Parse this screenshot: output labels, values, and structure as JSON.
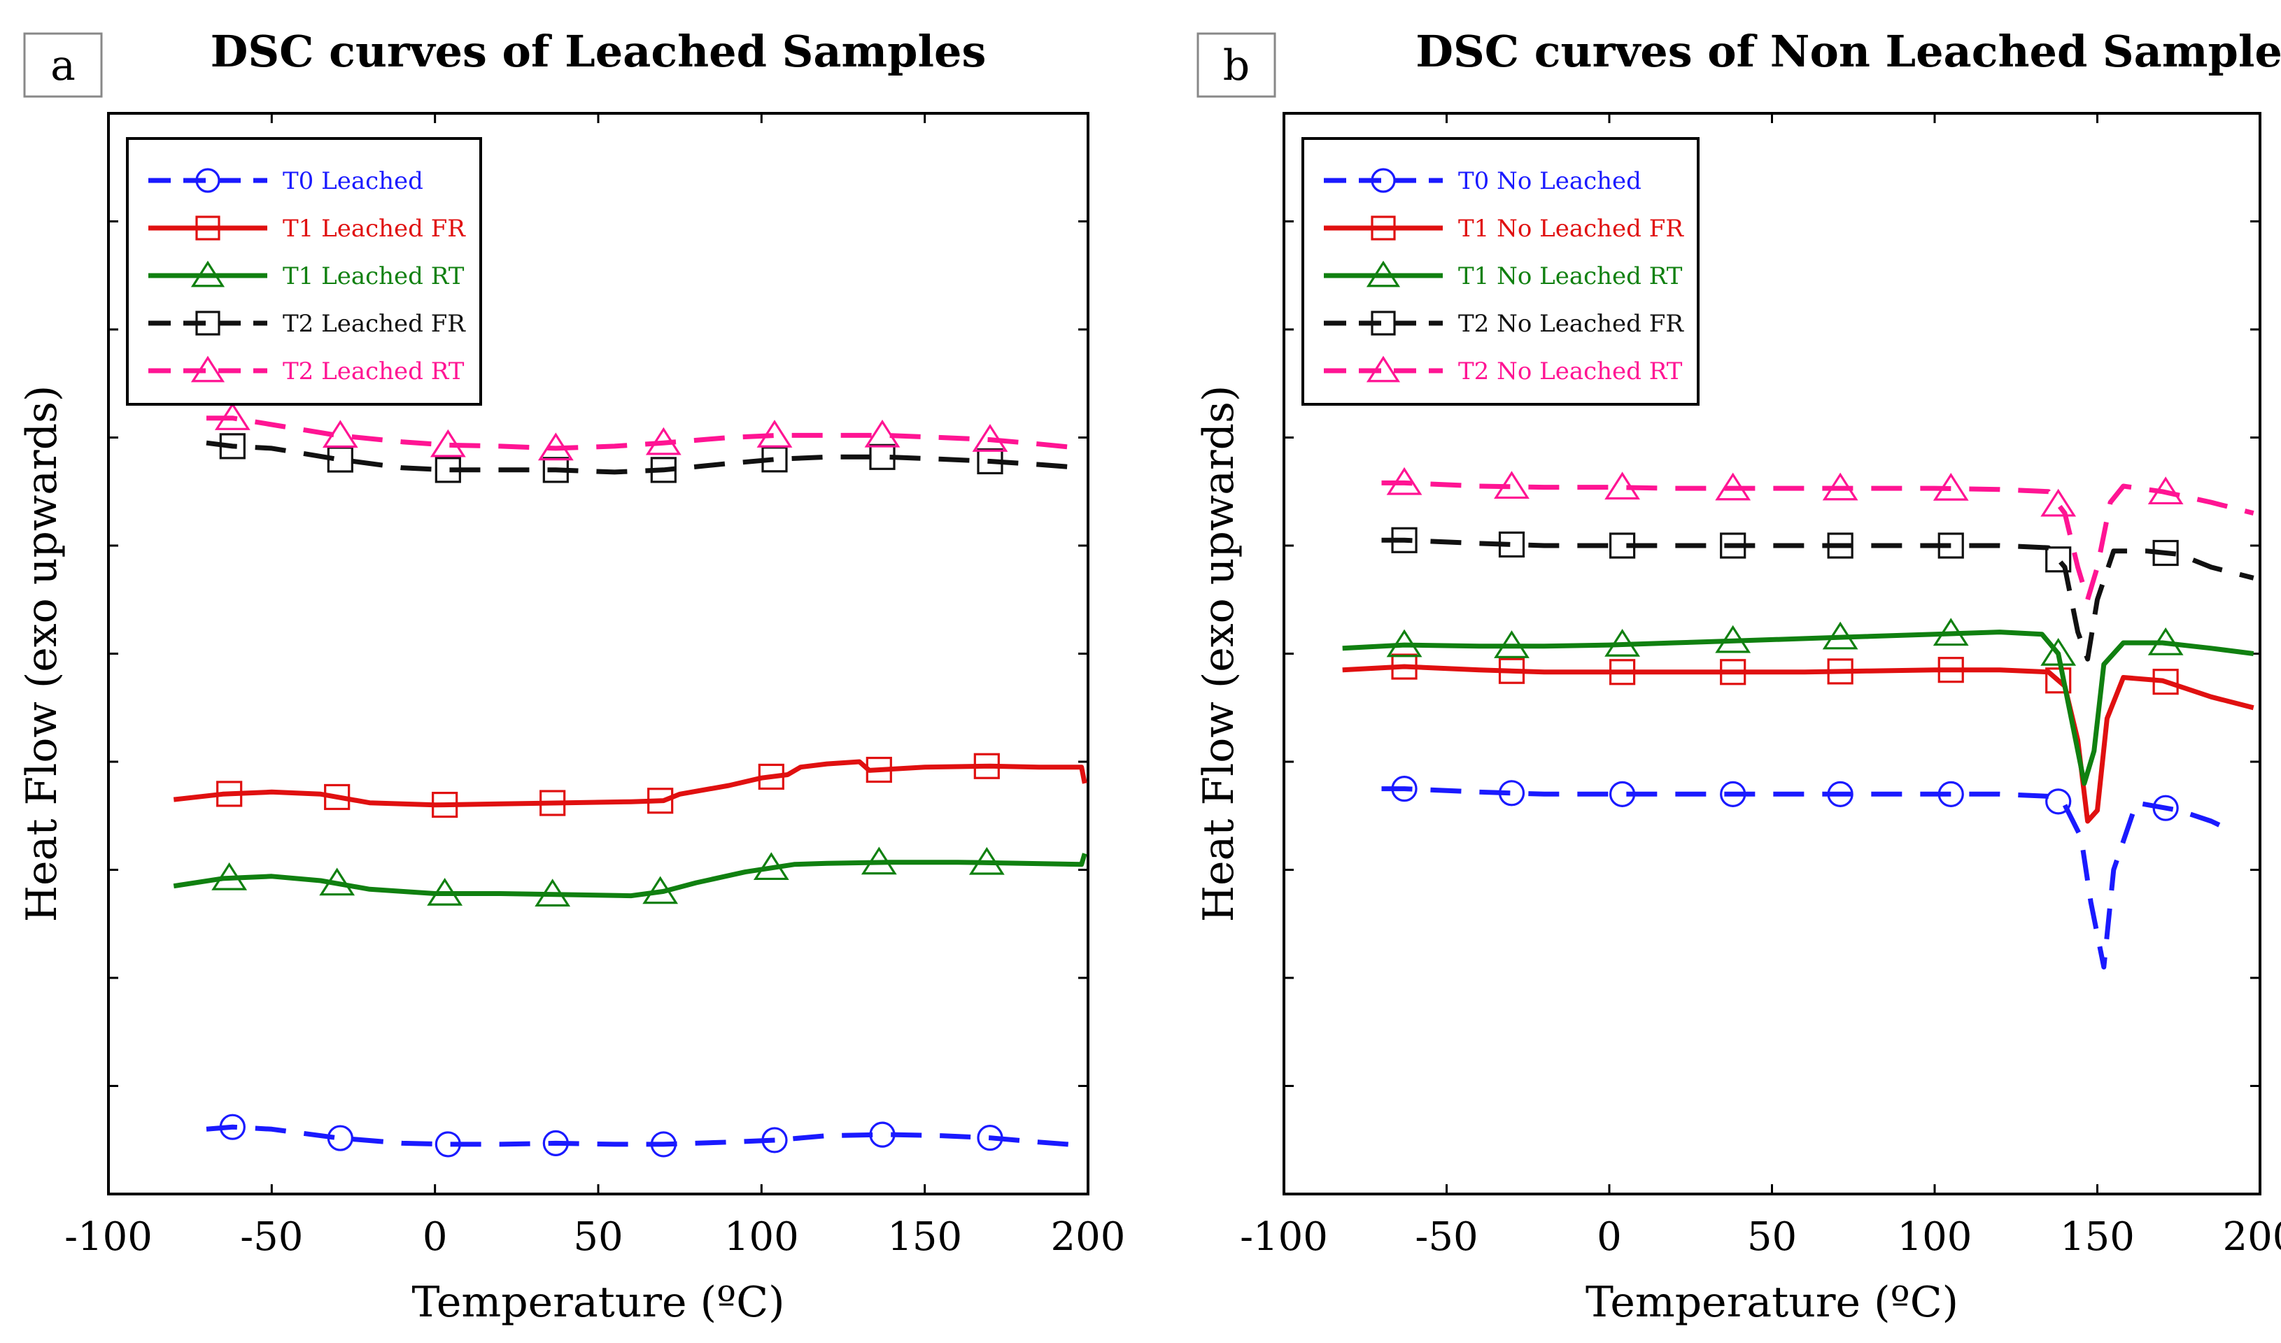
{
  "chart_data": [
    {
      "panel_label": "a",
      "type": "line",
      "title": "DSC curves of Leached Samples",
      "xlabel": "Temperature (ºC)",
      "ylabel": "Heat Flow (exo upwards)",
      "xlim": [
        -100,
        200
      ],
      "ylim": [
        0,
        10
      ],
      "xticks": [
        "-100",
        "-50",
        "0",
        "50",
        "100",
        "150",
        "200"
      ],
      "xtick_values": [
        -100,
        -50,
        0,
        50,
        100,
        150,
        200
      ],
      "ytick_values": [
        1,
        2,
        3,
        4,
        5,
        6,
        7,
        8,
        9
      ],
      "legend_position": "top-left",
      "series": [
        {
          "name": "T0 Leached",
          "color": "#1a1aff",
          "dash": "dashed",
          "marker": "circle",
          "x": [
            -70,
            -62,
            -50,
            -30,
            -10,
            4,
            20,
            37,
            55,
            70,
            90,
            105,
            120,
            138,
            155,
            170,
            185,
            198
          ],
          "y": [
            0.6,
            0.62,
            0.6,
            0.52,
            0.47,
            0.46,
            0.46,
            0.47,
            0.46,
            0.46,
            0.48,
            0.5,
            0.54,
            0.55,
            0.54,
            0.52,
            0.48,
            0.45
          ],
          "marker_x": [
            -62,
            -29,
            4,
            37,
            70,
            104,
            137,
            170
          ]
        },
        {
          "name": "T1 Leached FR",
          "color": "#e01010",
          "dash": "solid",
          "marker": "square",
          "x": [
            -80,
            -65,
            -50,
            -35,
            -20,
            0,
            20,
            40,
            60,
            70,
            75,
            90,
            100,
            108,
            112,
            120,
            130,
            133,
            150,
            170,
            185,
            198,
            199
          ],
          "y": [
            3.65,
            3.7,
            3.72,
            3.7,
            3.62,
            3.6,
            3.61,
            3.62,
            3.63,
            3.64,
            3.7,
            3.78,
            3.85,
            3.88,
            3.95,
            3.98,
            4.0,
            3.92,
            3.95,
            3.96,
            3.95,
            3.95,
            3.8
          ],
          "marker_x": [
            -63,
            -30,
            3,
            36,
            69,
            103,
            136,
            169
          ]
        },
        {
          "name": "T1 Leached RT",
          "color": "#108010",
          "dash": "solid",
          "marker": "triangle",
          "x": [
            -80,
            -65,
            -50,
            -35,
            -20,
            0,
            20,
            40,
            60,
            70,
            80,
            95,
            110,
            120,
            140,
            160,
            180,
            198,
            199
          ],
          "y": [
            2.85,
            2.92,
            2.94,
            2.9,
            2.82,
            2.78,
            2.78,
            2.77,
            2.76,
            2.8,
            2.88,
            2.98,
            3.05,
            3.06,
            3.07,
            3.07,
            3.06,
            3.05,
            3.15
          ],
          "marker_x": [
            -63,
            -30,
            3,
            36,
            69,
            103,
            136,
            169
          ]
        },
        {
          "name": "T2 Leached FR",
          "color": "#111111",
          "dash": "dashed",
          "marker": "square",
          "x": [
            -70,
            -62,
            -50,
            -30,
            -10,
            4,
            20,
            37,
            55,
            70,
            90,
            105,
            120,
            138,
            155,
            170,
            185,
            198
          ],
          "y": [
            6.95,
            6.92,
            6.9,
            6.8,
            6.72,
            6.7,
            6.7,
            6.7,
            6.68,
            6.7,
            6.76,
            6.8,
            6.82,
            6.82,
            6.8,
            6.78,
            6.75,
            6.72
          ],
          "marker_x": [
            -62,
            -29,
            4,
            37,
            70,
            104,
            137,
            170
          ]
        },
        {
          "name": "T2 Leached RT",
          "color": "#ff1493",
          "dash": "dashed",
          "marker": "triangle",
          "x": [
            -70,
            -62,
            -50,
            -30,
            -10,
            4,
            20,
            37,
            55,
            70,
            90,
            105,
            120,
            138,
            155,
            170,
            185,
            198
          ],
          "y": [
            7.18,
            7.18,
            7.12,
            7.02,
            6.96,
            6.93,
            6.92,
            6.9,
            6.92,
            6.95,
            7.0,
            7.02,
            7.02,
            7.02,
            7.0,
            6.98,
            6.94,
            6.9
          ],
          "marker_x": [
            -62,
            -29,
            4,
            37,
            70,
            104,
            137,
            170
          ]
        }
      ]
    },
    {
      "panel_label": "b",
      "type": "line",
      "title": "DSC curves of Non Leached Samples",
      "xlabel": "Temperature (ºC)",
      "ylabel": "Heat Flow (exo upwards)",
      "xlim": [
        -100,
        200
      ],
      "ylim": [
        0,
        10
      ],
      "xticks": [
        "-100",
        "-50",
        "0",
        "50",
        "100",
        "150",
        "200"
      ],
      "xtick_values": [
        -100,
        -50,
        0,
        50,
        100,
        150,
        200
      ],
      "ytick_values": [
        1.0,
        2.0,
        3.0,
        4.0,
        5.0,
        6.0,
        7.0,
        8.0,
        9.0
      ],
      "legend_position": "top-left",
      "series": [
        {
          "name": "T0 No Leached",
          "color": "#1a1aff",
          "dash": "dashed",
          "marker": "circle",
          "x": [
            -70,
            -63,
            -40,
            -20,
            0,
            20,
            40,
            60,
            80,
            100,
            120,
            135,
            140,
            145,
            148,
            152,
            155,
            162,
            175,
            185,
            192
          ],
          "y": [
            3.75,
            3.75,
            3.72,
            3.7,
            3.7,
            3.7,
            3.7,
            3.7,
            3.7,
            3.7,
            3.7,
            3.68,
            3.6,
            3.3,
            2.7,
            2.1,
            3.0,
            3.62,
            3.55,
            3.45,
            3.35
          ],
          "marker_x": [
            -63,
            -30,
            4,
            38,
            71,
            105,
            138,
            171
          ]
        },
        {
          "name": "T1 No Leached FR",
          "color": "#e01010",
          "dash": "solid",
          "marker": "square",
          "x": [
            -82,
            -63,
            -40,
            -20,
            0,
            20,
            40,
            60,
            80,
            100,
            120,
            135,
            140,
            144,
            147,
            150,
            153,
            158,
            170,
            185,
            198
          ],
          "y": [
            4.85,
            4.88,
            4.85,
            4.83,
            4.83,
            4.83,
            4.83,
            4.83,
            4.84,
            4.85,
            4.85,
            4.83,
            4.7,
            4.2,
            3.45,
            3.55,
            4.4,
            4.78,
            4.75,
            4.6,
            4.5
          ],
          "marker_x": [
            -63,
            -30,
            4,
            38,
            71,
            105,
            138,
            171
          ]
        },
        {
          "name": "T1 No Leached RT",
          "color": "#108010",
          "dash": "solid",
          "marker": "triangle",
          "x": [
            -82,
            -63,
            -40,
            -20,
            0,
            20,
            40,
            60,
            80,
            100,
            120,
            133,
            138,
            142,
            146,
            149,
            152,
            158,
            170,
            185,
            198
          ],
          "y": [
            5.05,
            5.08,
            5.07,
            5.07,
            5.08,
            5.1,
            5.12,
            5.14,
            5.16,
            5.18,
            5.2,
            5.18,
            5.0,
            4.4,
            3.8,
            4.1,
            4.9,
            5.1,
            5.1,
            5.05,
            5.0
          ],
          "marker_x": [
            -63,
            -30,
            4,
            38,
            71,
            105,
            138,
            171
          ]
        },
        {
          "name": "T2 No Leached FR",
          "color": "#111111",
          "dash": "dashed",
          "marker": "square",
          "x": [
            -70,
            -63,
            -40,
            -20,
            0,
            20,
            40,
            60,
            80,
            100,
            120,
            135,
            140,
            144,
            147,
            150,
            155,
            165,
            175,
            185,
            198
          ],
          "y": [
            6.05,
            6.05,
            6.02,
            6.0,
            6.0,
            6.0,
            6.0,
            6.0,
            6.0,
            6.0,
            6.0,
            5.98,
            5.8,
            5.2,
            4.95,
            5.5,
            5.95,
            5.95,
            5.92,
            5.8,
            5.7
          ],
          "marker_x": [
            -63,
            -30,
            4,
            38,
            71,
            105,
            138,
            171
          ]
        },
        {
          "name": "T2 No Leached RT",
          "color": "#ff1493",
          "dash": "dashed",
          "marker": "triangle",
          "x": [
            -70,
            -63,
            -40,
            -20,
            0,
            20,
            40,
            60,
            80,
            100,
            120,
            135,
            140,
            144,
            147,
            150,
            154,
            158,
            170,
            185,
            198
          ],
          "y": [
            6.58,
            6.58,
            6.55,
            6.54,
            6.54,
            6.53,
            6.53,
            6.53,
            6.53,
            6.53,
            6.52,
            6.5,
            6.3,
            5.8,
            5.5,
            5.8,
            6.4,
            6.55,
            6.5,
            6.4,
            6.3
          ],
          "marker_x": [
            -63,
            -30,
            4,
            38,
            71,
            105,
            138,
            171
          ]
        }
      ]
    }
  ]
}
